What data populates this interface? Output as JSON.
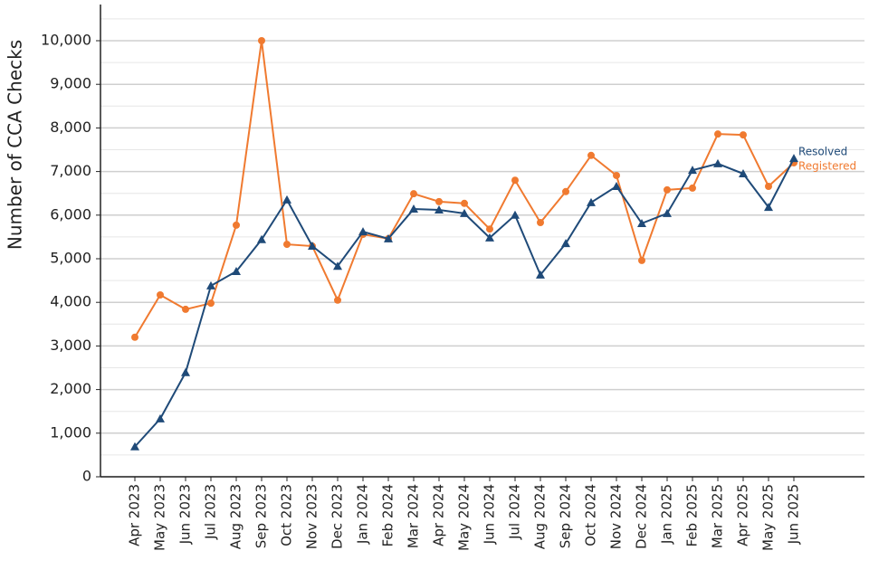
{
  "chart_data": {
    "type": "line",
    "y_label": "Number of CCA Checks",
    "categories": [
      "Apr 2023",
      "May 2023",
      "Jun 2023",
      "Jul 2023",
      "Aug 2023",
      "Sep 2023",
      "Oct 2023",
      "Nov 2023",
      "Dec 2023",
      "Jan 2024",
      "Feb 2024",
      "Mar 2024",
      "Apr 2024",
      "May 2024",
      "Jun 2024",
      "Jul 2024",
      "Aug 2024",
      "Sep 2024",
      "Oct 2024",
      "Nov 2024",
      "Dec 2024",
      "Jan 2025",
      "Feb 2025",
      "Mar 2025",
      "Apr 2025",
      "May 2025",
      "Jun 2025"
    ],
    "series": [
      {
        "name": "Registered",
        "color": "#f07a30",
        "marker": "circle",
        "values": [
          3200,
          4170,
          3840,
          3980,
          5770,
          10000,
          5330,
          5290,
          4050,
          5560,
          5460,
          6490,
          6310,
          6270,
          5680,
          6800,
          5830,
          6540,
          7370,
          6910,
          4960,
          6580,
          6620,
          7860,
          7840,
          6660,
          7200
        ]
      },
      {
        "name": "Resolved",
        "color": "#1f4a78",
        "marker": "triangle",
        "values": [
          690,
          1330,
          2390,
          4380,
          4710,
          5440,
          6350,
          5290,
          4830,
          5620,
          5460,
          6140,
          6120,
          6040,
          5480,
          6000,
          4630,
          5350,
          6290,
          6660,
          5810,
          6040,
          7030,
          7180,
          6950,
          6180,
          7300
        ]
      }
    ],
    "ylim": [
      0,
      10830
    ],
    "yticks": [
      0,
      {
        "value": 1000,
        "label": "1,000"
      },
      {
        "value": 2000,
        "label": "2,000"
      },
      {
        "value": 3000,
        "label": "3,000"
      },
      {
        "value": 4000,
        "label": "4,000"
      },
      {
        "value": 5000,
        "label": "5,000"
      },
      {
        "value": 6000,
        "label": "6,000"
      },
      {
        "value": 7000,
        "label": "7,000"
      },
      {
        "value": 8000,
        "label": "8,000"
      },
      {
        "value": 9000,
        "label": "9,000"
      },
      {
        "value": 10000,
        "label": "10,000"
      }
    ],
    "minor_yticks": [
      500,
      1500,
      2500,
      3500,
      4500,
      5500,
      6500,
      7500,
      8500,
      9500,
      10500
    ],
    "grid": true
  }
}
